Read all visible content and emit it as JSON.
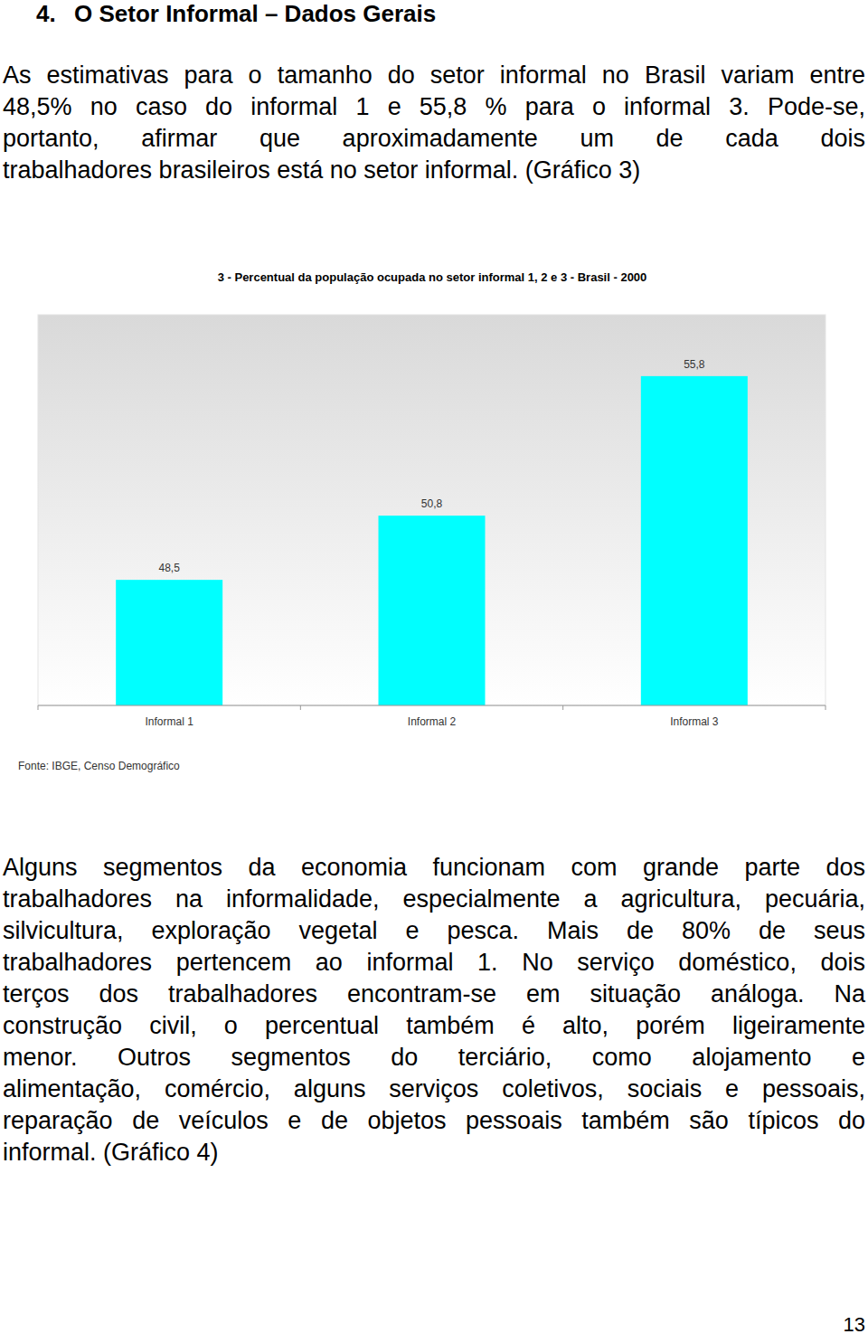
{
  "heading": {
    "number": "4.",
    "title": "O Setor Informal – Dados Gerais"
  },
  "paragraphs": [
    {
      "lines": [
        "As estimativas para o tamanho do setor informal no Brasil variam entre",
        "48,5% no caso do informal 1 e 55,8 % para o informal 3. Pode-se,",
        "portanto, afirmar que aproximadamente um de cada dois",
        "trabalhadores brasileiros está no setor informal. (Gráfico 3)"
      ]
    },
    {
      "lines": [
        "Alguns segmentos da economia funcionam com grande parte dos",
        "trabalhadores na informalidade, especialmente a agricultura, pecuária,",
        "silvicultura, exploração vegetal e pesca. Mais de 80% de seus",
        "trabalhadores pertencem ao informal 1. No serviço doméstico, dois",
        "terços dos trabalhadores encontram-se em situação análoga. Na",
        "construção civil, o percentual também é alto, porém ligeiramente",
        "menor. Outros segmentos do terciário, como alojamento e",
        "alimentação, comércio, alguns serviços coletivos, sociais e pessoais,",
        "reparação de veículos e de objetos pessoais também são típicos do",
        "informal. (Gráfico 4)"
      ]
    }
  ],
  "chart_data": {
    "type": "bar",
    "title": "3 - Percentual da população ocupada no setor informal 1, 2 e 3 - Brasil - 2000",
    "categories": [
      "Informal 1",
      "Informal 2",
      "Informal 3"
    ],
    "values": [
      48.5,
      50.8,
      55.8
    ],
    "value_labels": [
      "48,5",
      "50,8",
      "55,8"
    ],
    "color": "#00ffff",
    "ylim": [
      44,
      58
    ],
    "data_labels": true,
    "tick_labels": "x",
    "grid": false
  },
  "source": "Fonte: IBGE, Censo Demográfico",
  "page_number": "13"
}
